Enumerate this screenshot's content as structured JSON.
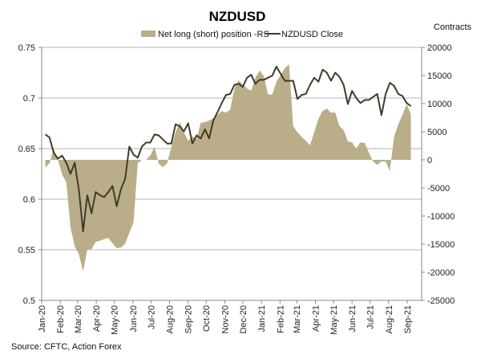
{
  "chart_data": {
    "type": "line+area",
    "title": "NZDUSD",
    "right_axis_label": "Contracts",
    "source": "Source: CFTC, Action Forex",
    "grid": true,
    "legend_placement": "top",
    "colors": {
      "area": "#b9ae89",
      "line": "#3f3c29",
      "grid": "#b4b4b4"
    },
    "xlim": [
      "2020-01-01",
      "2021-09-25"
    ],
    "x_tick_labels": [
      "Jan-20",
      "Feb-20",
      "Mar-20",
      "Apr-20",
      "May-20",
      "Jun-20",
      "Jul-20",
      "Aug-20",
      "Sep-20",
      "Oct-20",
      "Nov-20",
      "Dec-20",
      "Jan-21",
      "Feb-21",
      "Mar-21",
      "Apr-21",
      "May-21",
      "Jun-21",
      "Jul-21",
      "Aug-21",
      "Sep-21"
    ],
    "y_left": {
      "lim": [
        0.5,
        0.75
      ],
      "ticks": [
        "0.5",
        "0.55",
        "0.6",
        "0.65",
        "0.7",
        "0.75"
      ]
    },
    "y_right": {
      "lim": [
        -25000,
        20000
      ],
      "ticks": [
        "-25000",
        "-20000",
        "-15000",
        "-10000",
        "-5000",
        "0",
        "5000",
        "10000",
        "15000",
        "20000"
      ]
    },
    "x": [
      "2020-01-07",
      "2020-01-14",
      "2020-01-21",
      "2020-01-28",
      "2020-02-04",
      "2020-02-11",
      "2020-02-18",
      "2020-02-25",
      "2020-03-03",
      "2020-03-10",
      "2020-03-17",
      "2020-03-24",
      "2020-03-31",
      "2020-04-07",
      "2020-04-14",
      "2020-04-21",
      "2020-04-28",
      "2020-05-05",
      "2020-05-12",
      "2020-05-19",
      "2020-05-26",
      "2020-06-02",
      "2020-06-09",
      "2020-06-16",
      "2020-06-23",
      "2020-06-30",
      "2020-07-07",
      "2020-07-14",
      "2020-07-21",
      "2020-07-28",
      "2020-08-04",
      "2020-08-11",
      "2020-08-18",
      "2020-08-25",
      "2020-09-01",
      "2020-09-08",
      "2020-09-15",
      "2020-09-22",
      "2020-09-29",
      "2020-10-06",
      "2020-10-13",
      "2020-10-20",
      "2020-10-27",
      "2020-11-03",
      "2020-11-10",
      "2020-11-17",
      "2020-11-24",
      "2020-12-01",
      "2020-12-08",
      "2020-12-15",
      "2020-12-22",
      "2020-12-29",
      "2021-01-05",
      "2021-01-12",
      "2021-01-19",
      "2021-01-26",
      "2021-02-02",
      "2021-02-09",
      "2021-02-16",
      "2021-02-23",
      "2021-03-02",
      "2021-03-09",
      "2021-03-16",
      "2021-03-23",
      "2021-03-30",
      "2021-04-06",
      "2021-04-13",
      "2021-04-20",
      "2021-04-27",
      "2021-05-04",
      "2021-05-11",
      "2021-05-18",
      "2021-05-25",
      "2021-06-01",
      "2021-06-08",
      "2021-06-15",
      "2021-06-22",
      "2021-06-29",
      "2021-07-06",
      "2021-07-13",
      "2021-07-20",
      "2021-07-27",
      "2021-08-03",
      "2021-08-10",
      "2021-08-17",
      "2021-08-24",
      "2021-08-31",
      "2021-09-07"
    ],
    "series": [
      {
        "name": "Net long (short) position -RS",
        "type": "area",
        "axis": "right",
        "values": [
          -1400,
          -600,
          2000,
          0,
          -2600,
          -4000,
          -12000,
          -15400,
          -16800,
          -19900,
          -15900,
          -15900,
          -14600,
          -14400,
          -14100,
          -13900,
          -14900,
          -15700,
          -15600,
          -14900,
          -13000,
          -11100,
          -600,
          0,
          0,
          800,
          2300,
          -700,
          -1300,
          -600,
          2300,
          4900,
          6700,
          4900,
          3400,
          4100,
          3700,
          6600,
          6700,
          7000,
          7400,
          8000,
          8700,
          8400,
          8900,
          12700,
          14100,
          13400,
          12700,
          12300,
          14600,
          15900,
          14900,
          11600,
          11600,
          13900,
          15100,
          16300,
          17000,
          6000,
          4900,
          4100,
          3400,
          2600,
          4900,
          7300,
          8700,
          9100,
          8400,
          8400,
          6000,
          5300,
          3300,
          3100,
          2000,
          3100,
          3000,
          1300,
          -300,
          -900,
          -300,
          -300,
          -2000,
          4100,
          6300,
          8000,
          9900,
          8100
        ]
      },
      {
        "name": "NZDUSD Close",
        "type": "line",
        "axis": "left",
        "values": [
          0.664,
          0.661,
          0.646,
          0.64,
          0.643,
          0.636,
          0.625,
          0.636,
          0.609,
          0.568,
          0.604,
          0.586,
          0.607,
          0.604,
          0.602,
          0.607,
          0.613,
          0.593,
          0.61,
          0.62,
          0.652,
          0.644,
          0.641,
          0.652,
          0.656,
          0.656,
          0.664,
          0.663,
          0.659,
          0.655,
          0.655,
          0.674,
          0.672,
          0.667,
          0.675,
          0.655,
          0.663,
          0.66,
          0.669,
          0.66,
          0.678,
          0.686,
          0.695,
          0.703,
          0.704,
          0.713,
          0.714,
          0.711,
          0.72,
          0.723,
          0.714,
          0.718,
          0.718,
          0.72,
          0.722,
          0.731,
          0.724,
          0.717,
          0.717,
          0.717,
          0.699,
          0.703,
          0.704,
          0.713,
          0.72,
          0.716,
          0.728,
          0.725,
          0.717,
          0.725,
          0.721,
          0.713,
          0.694,
          0.707,
          0.7,
          0.695,
          0.698,
          0.698,
          0.701,
          0.704,
          0.683,
          0.704,
          0.715,
          0.712,
          0.704,
          0.702,
          0.695,
          0.692
        ]
      }
    ]
  }
}
